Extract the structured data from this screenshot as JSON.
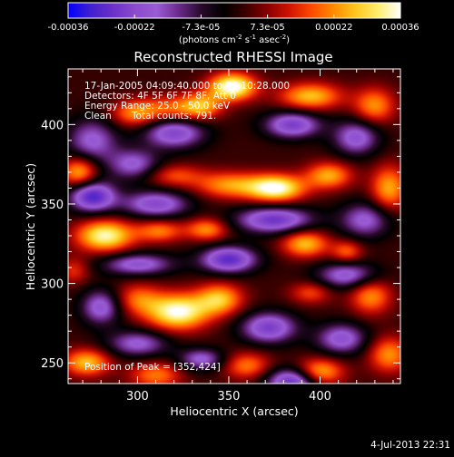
{
  "colorbar": {
    "ticks": [
      "-0.00036",
      "-0.00022",
      "-7.3e-05",
      "7.3e-05",
      "0.00022",
      "0.00036"
    ],
    "min": -0.00036,
    "max": 0.00036,
    "unit_base": "(photons cm",
    "unit_sup1": "-2",
    "unit_mid": " s",
    "unit_sup2": "-1",
    "unit_mid2": " asec",
    "unit_sup3": "-2",
    "unit_end": ")",
    "colors": [
      "#0000ff",
      "#4020d0",
      "#6a30c8",
      "#8a4acc",
      "#9a5cd4",
      "#6a2a8a",
      "#2a0a2a",
      "#000000",
      "#3a0000",
      "#8a0000",
      "#d01400",
      "#ff4a00",
      "#ff8c00",
      "#ffc81e",
      "#ffee70",
      "#ffffff"
    ]
  },
  "chart_data": {
    "type": "heatmap",
    "title": "Reconstructed RHESSI Image",
    "xlabel": "Heliocentric X (arcsec)",
    "ylabel": "Heliocentric Y (arcsec)",
    "xlim": [
      262,
      444
    ],
    "ylim": [
      237,
      435
    ],
    "xticks": [
      300,
      350,
      400
    ],
    "yticks": [
      250,
      300,
      350,
      400
    ],
    "value_scale": [
      -0.00036,
      0.00036
    ],
    "blobs": [
      {
        "x": 352,
        "y": 424,
        "v": 0.00036,
        "sx": 9,
        "sy": 6
      },
      {
        "x": 318,
        "y": 410,
        "v": 0.00016,
        "sx": 12,
        "sy": 6
      },
      {
        "x": 298,
        "y": 407,
        "v": 0.00018,
        "sx": 9,
        "sy": 6
      },
      {
        "x": 335,
        "y": 412,
        "v": 0.0002,
        "sx": 8,
        "sy": 6
      },
      {
        "x": 395,
        "y": 418,
        "v": 0.00024,
        "sx": 12,
        "sy": 6
      },
      {
        "x": 430,
        "y": 412,
        "v": 0.0002,
        "sx": 8,
        "sy": 8
      },
      {
        "x": 320,
        "y": 395,
        "v": -0.00025,
        "sx": 12,
        "sy": 7
      },
      {
        "x": 385,
        "y": 400,
        "v": -0.00026,
        "sx": 11,
        "sy": 6
      },
      {
        "x": 275,
        "y": 390,
        "v": -0.0002,
        "sx": 10,
        "sy": 10
      },
      {
        "x": 420,
        "y": 392,
        "v": -0.00022,
        "sx": 9,
        "sy": 8
      },
      {
        "x": 268,
        "y": 370,
        "v": 0.00024,
        "sx": 7,
        "sy": 7
      },
      {
        "x": 376,
        "y": 360,
        "v": 0.00034,
        "sx": 11,
        "sy": 6
      },
      {
        "x": 350,
        "y": 362,
        "v": 0.0002,
        "sx": 13,
        "sy": 6
      },
      {
        "x": 405,
        "y": 368,
        "v": 0.00022,
        "sx": 9,
        "sy": 6
      },
      {
        "x": 438,
        "y": 360,
        "v": 0.00022,
        "sx": 7,
        "sy": 10
      },
      {
        "x": 320,
        "y": 368,
        "v": 0.00014,
        "sx": 11,
        "sy": 5
      },
      {
        "x": 298,
        "y": 375,
        "v": -0.0002,
        "sx": 10,
        "sy": 7
      },
      {
        "x": 275,
        "y": 355,
        "v": -0.00032,
        "sx": 9,
        "sy": 7
      },
      {
        "x": 310,
        "y": 350,
        "v": -0.00024,
        "sx": 13,
        "sy": 6
      },
      {
        "x": 375,
        "y": 340,
        "v": -0.00028,
        "sx": 15,
        "sy": 6
      },
      {
        "x": 425,
        "y": 340,
        "v": -0.0002,
        "sx": 10,
        "sy": 8
      },
      {
        "x": 282,
        "y": 330,
        "v": 0.00032,
        "sx": 11,
        "sy": 7
      },
      {
        "x": 312,
        "y": 333,
        "v": 0.00018,
        "sx": 9,
        "sy": 5
      },
      {
        "x": 338,
        "y": 334,
        "v": 0.0002,
        "sx": 8,
        "sy": 5
      },
      {
        "x": 392,
        "y": 325,
        "v": 0.00024,
        "sx": 9,
        "sy": 6
      },
      {
        "x": 415,
        "y": 320,
        "v": 0.00016,
        "sx": 6,
        "sy": 5
      },
      {
        "x": 350,
        "y": 315,
        "v": -0.0003,
        "sx": 11,
        "sy": 6
      },
      {
        "x": 300,
        "y": 312,
        "v": -0.00022,
        "sx": 14,
        "sy": 5
      },
      {
        "x": 415,
        "y": 305,
        "v": -0.00022,
        "sx": 12,
        "sy": 6
      },
      {
        "x": 265,
        "y": 308,
        "v": 0.00012,
        "sx": 6,
        "sy": 6
      },
      {
        "x": 322,
        "y": 282,
        "v": 0.00034,
        "sx": 12,
        "sy": 8
      },
      {
        "x": 345,
        "y": 290,
        "v": 0.00024,
        "sx": 9,
        "sy": 7
      },
      {
        "x": 300,
        "y": 290,
        "v": 0.00016,
        "sx": 9,
        "sy": 7
      },
      {
        "x": 428,
        "y": 292,
        "v": 0.0002,
        "sx": 8,
        "sy": 8
      },
      {
        "x": 395,
        "y": 294,
        "v": 0.00014,
        "sx": 8,
        "sy": 5
      },
      {
        "x": 280,
        "y": 285,
        "v": -0.00022,
        "sx": 8,
        "sy": 8
      },
      {
        "x": 372,
        "y": 272,
        "v": -0.00026,
        "sx": 11,
        "sy": 7
      },
      {
        "x": 412,
        "y": 265,
        "v": -0.00022,
        "sx": 10,
        "sy": 7
      },
      {
        "x": 300,
        "y": 262,
        "v": -0.0002,
        "sx": 12,
        "sy": 6
      },
      {
        "x": 272,
        "y": 250,
        "v": 0.00024,
        "sx": 9,
        "sy": 6
      },
      {
        "x": 310,
        "y": 242,
        "v": 0.00018,
        "sx": 10,
        "sy": 6
      },
      {
        "x": 360,
        "y": 248,
        "v": 0.00018,
        "sx": 9,
        "sy": 6
      },
      {
        "x": 400,
        "y": 244,
        "v": 0.00024,
        "sx": 9,
        "sy": 6
      },
      {
        "x": 438,
        "y": 255,
        "v": 0.0002,
        "sx": 8,
        "sy": 8
      },
      {
        "x": 335,
        "y": 252,
        "v": -0.0002,
        "sx": 9,
        "sy": 5
      },
      {
        "x": 385,
        "y": 238,
        "v": -0.0003,
        "sx": 10,
        "sy": 6
      }
    ],
    "base_level": 2e-05
  },
  "annotations": {
    "time_range": "17-Jan-2005 04:09:40.000 to 04:10:28.000",
    "detectors": "Detectors: 4F 5F 6F 7F 8F, Att 0",
    "energy": "Energy Range: 25.0 - 50.0 keV",
    "clean": "Clean",
    "counts": "Total counts: 791.",
    "peak": "Position of Peak = [352,424]"
  },
  "footer": {
    "timestamp": "4-Jul-2013 22:31"
  }
}
